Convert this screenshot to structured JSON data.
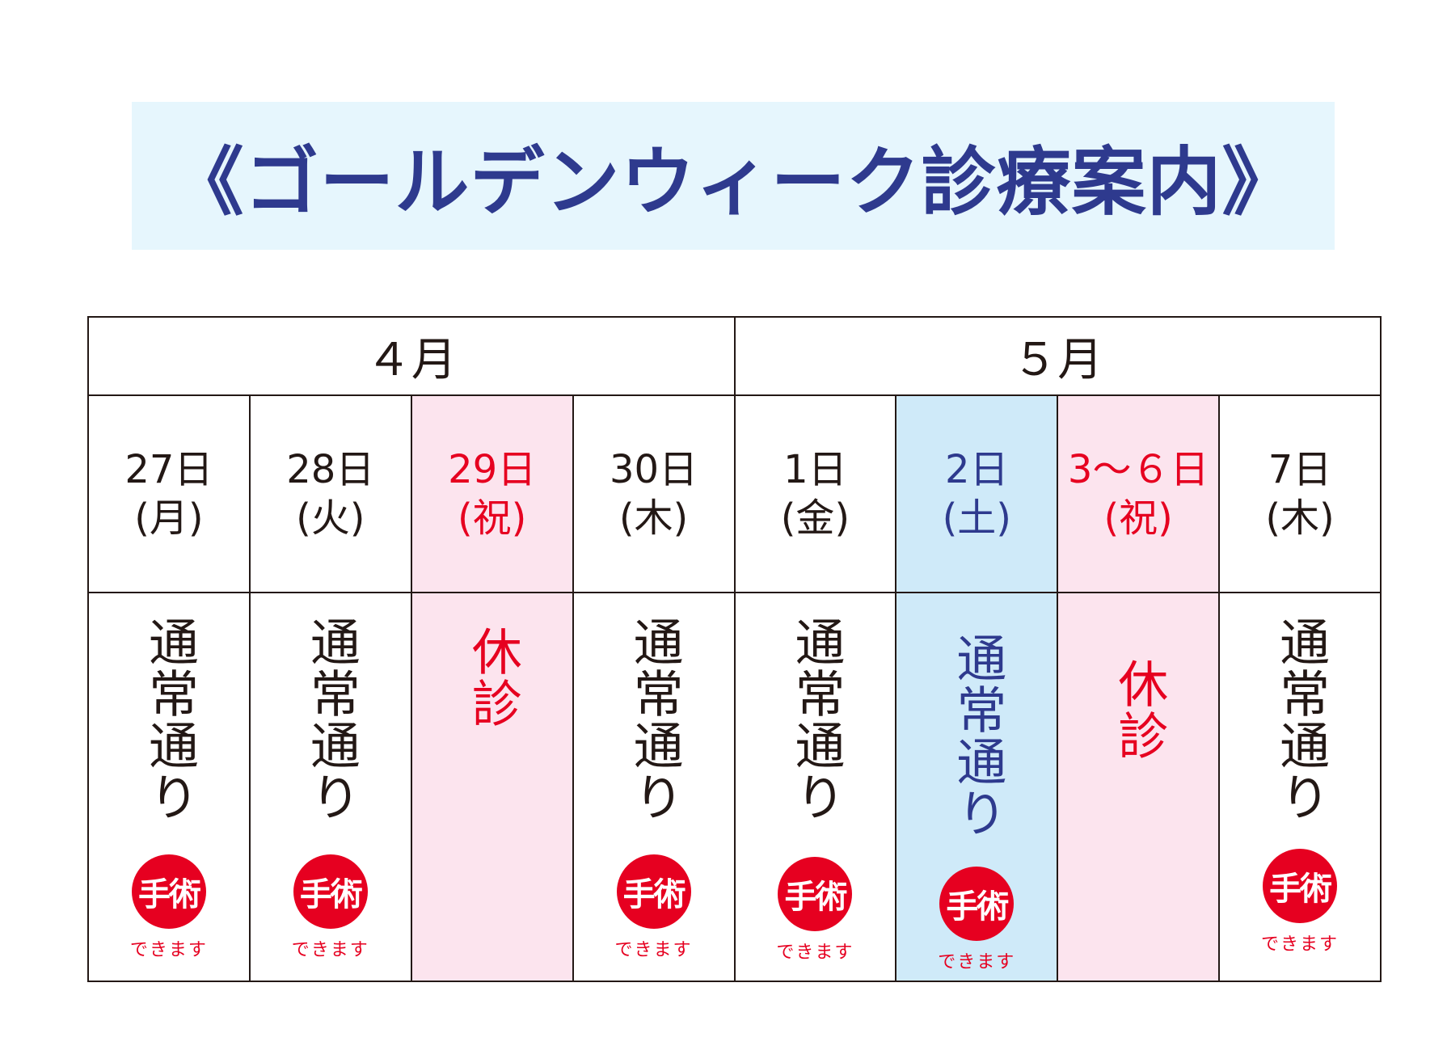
{
  "title": "《ゴールデンウィーク診療案内》",
  "colors": {
    "title_text": "#2e3a8e",
    "title_bg": "#e6f6fd",
    "holiday_bg": "#fce4ee",
    "saturday_bg": "#cfeaf9",
    "holiday_text": "#e60020",
    "saturday_text": "#2e3a8e",
    "surgery_badge": "#e60020"
  },
  "months": [
    {
      "label": "４月"
    },
    {
      "label": "５月"
    }
  ],
  "days": [
    {
      "date": "27日",
      "weekday": "(月)",
      "status": "通常通り",
      "type": "normal",
      "surgery": "手術",
      "surgery_note": "できます"
    },
    {
      "date": "28日",
      "weekday": "(火)",
      "status": "通常通り",
      "type": "normal",
      "surgery": "手術",
      "surgery_note": "できます"
    },
    {
      "date": "29日",
      "weekday": "(祝)",
      "status": "休診",
      "type": "holiday"
    },
    {
      "date": "30日",
      "weekday": "(木)",
      "status": "通常通り",
      "type": "normal",
      "surgery": "手術",
      "surgery_note": "できます"
    },
    {
      "date": "1日",
      "weekday": "(金)",
      "status": "通常通り",
      "type": "normal",
      "surgery": "手術",
      "surgery_note": "できます"
    },
    {
      "date": "2日",
      "weekday": "(土)",
      "status": "通常通り",
      "type": "saturday",
      "surgery": "手術",
      "surgery_note": "できます"
    },
    {
      "date": "3～６日",
      "weekday": "(祝)",
      "status": "休診",
      "type": "holiday"
    },
    {
      "date": "7日",
      "weekday": "(木)",
      "status": "通常通り",
      "type": "normal",
      "surgery": "手術",
      "surgery_note": "できます"
    }
  ]
}
